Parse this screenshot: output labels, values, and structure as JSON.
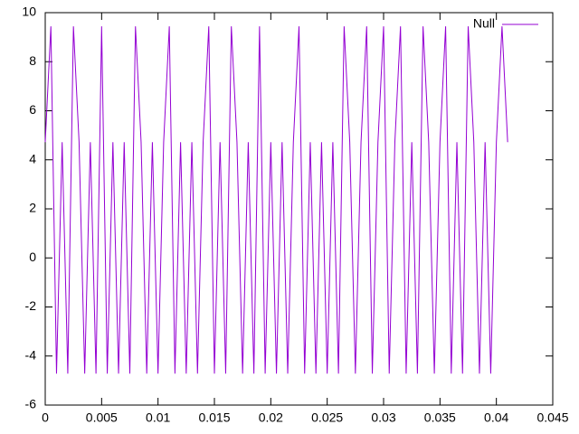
{
  "chart_data": {
    "type": "line",
    "x": [
      0,
      0.0005,
      0.001,
      0.0015,
      0.002,
      0.0025,
      0.003,
      0.0035,
      0.004,
      0.0045,
      0.005,
      0.0055,
      0.006,
      0.0065,
      0.007,
      0.0075,
      0.008,
      0.0085,
      0.009,
      0.0095,
      0.01,
      0.0105,
      0.011,
      0.0115,
      0.012,
      0.0125,
      0.013,
      0.0135,
      0.014,
      0.0145,
      0.015,
      0.0155,
      0.016,
      0.0165,
      0.017,
      0.0175,
      0.018,
      0.0185,
      0.019,
      0.0195,
      0.02,
      0.0205,
      0.021,
      0.0215,
      0.022,
      0.0225,
      0.023,
      0.0235,
      0.024,
      0.0245,
      0.025,
      0.0255,
      0.026,
      0.0265,
      0.027,
      0.0275,
      0.028,
      0.0285,
      0.029,
      0.0295,
      0.03,
      0.0305,
      0.031,
      0.0315,
      0.032,
      0.0325,
      0.033,
      0.0335,
      0.034,
      0.0345,
      0.035,
      0.0355,
      0.036,
      0.0365,
      0.037,
      0.0375,
      0.038,
      0.0385,
      0.039,
      0.0395,
      0.04,
      0.0405,
      0.041
    ],
    "series": [
      {
        "name": "Null",
        "color": "#9400d3",
        "values": [
          4.72,
          9.44,
          -4.72,
          4.72,
          -4.72,
          9.44,
          4.72,
          -4.72,
          4.72,
          -4.72,
          9.44,
          -4.72,
          4.72,
          -4.72,
          4.72,
          -4.72,
          9.44,
          4.72,
          -4.72,
          4.72,
          -4.72,
          4.72,
          9.44,
          -4.72,
          4.72,
          -4.72,
          4.72,
          -4.72,
          4.72,
          9.44,
          -4.72,
          4.72,
          -4.72,
          9.44,
          4.72,
          -4.72,
          4.72,
          -4.72,
          9.44,
          -4.72,
          4.72,
          -4.72,
          4.72,
          -4.72,
          4.72,
          9.44,
          -4.72,
          4.72,
          -4.72,
          4.72,
          -4.72,
          4.72,
          -4.72,
          9.44,
          4.72,
          -4.72,
          4.72,
          9.44,
          -4.72,
          4.72,
          9.44,
          -4.72,
          4.72,
          9.44,
          -4.72,
          4.72,
          -4.72,
          9.44,
          4.72,
          -4.72,
          4.72,
          9.44,
          -4.72,
          4.72,
          -4.72,
          9.44,
          4.72,
          -4.72,
          4.72,
          -4.72,
          4.72,
          9.44,
          4.72
        ]
      }
    ],
    "xlim": [
      0,
      0.045
    ],
    "xticks": [
      0,
      0.005,
      0.01,
      0.015,
      0.02,
      0.025,
      0.03,
      0.035,
      0.04,
      0.045
    ],
    "ylim": [
      -6,
      10
    ],
    "yticks": [
      -6,
      -4,
      -2,
      0,
      2,
      4,
      6,
      8,
      10
    ],
    "legend": "top-right"
  }
}
